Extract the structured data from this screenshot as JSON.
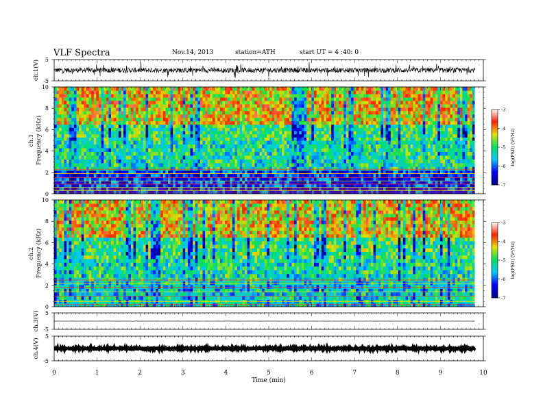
{
  "header": {
    "title": "VLF  Spectra",
    "date": "Nov.14, 2013",
    "station": "station=ATH",
    "start": "start  UT  =   4  :40: 0"
  },
  "chart_data": {
    "type": "spectrogram",
    "xlabel": "Time  (min)",
    "xlim": [
      0,
      10
    ],
    "xticks": [
      "0",
      "1",
      "2",
      "3",
      "4",
      "5",
      "6",
      "7",
      "8",
      "9",
      "10"
    ],
    "record_end_min": 9.8,
    "panels": [
      {
        "id": "ch1_waveform",
        "type": "line",
        "ylabel": "ch.1(V)",
        "ylim": [
          -5,
          5
        ],
        "yticks": [
          "5",
          "-5"
        ],
        "signal": {
          "baseline_V": 0.0,
          "noise_amplitude_V": 1.2,
          "burst_amplitude_V": 3.0
        }
      },
      {
        "id": "ch1_spectrogram",
        "type": "heatmap",
        "ylabel": "ch.1",
        "ylabel2": "Frequency  (kHz)",
        "ylim": [
          0,
          10
        ],
        "yticks": [
          "0",
          "2",
          "4",
          "6",
          "8",
          "10"
        ],
        "colorbar": {
          "label": "log(PSD) (V²/Hz)",
          "range": [
            -7,
            -3
          ],
          "ticks": [
            "-3",
            "-4",
            "-5",
            "-6",
            "-7"
          ],
          "colors": [
            "#00008b",
            "#0000ff",
            "#00c8ff",
            "#00e060",
            "#e0e000",
            "#ff2000",
            "#ffffff"
          ]
        },
        "bands_khz": [
          {
            "from": 0.0,
            "to": 2.2,
            "description_level": -6.2
          },
          {
            "from": 2.2,
            "to": 5.0,
            "description_level": -5.2
          },
          {
            "from": 5.0,
            "to": 6.5,
            "description_level": -5.0
          },
          {
            "from": 6.5,
            "to": 10.0,
            "description_level": -4.2
          }
        ],
        "horizontal_lines_khz": [
          0.15,
          0.3,
          0.45,
          0.6,
          0.9,
          1.2,
          1.5,
          1.9,
          2.3
        ]
      },
      {
        "id": "ch2_spectrogram",
        "type": "heatmap",
        "ylabel": "ch.2",
        "ylabel2": "Frequency  (kHz)",
        "ylim": [
          0,
          10
        ],
        "yticks": [
          "0",
          "2",
          "4",
          "6",
          "8",
          "10"
        ],
        "colorbar": {
          "label": "log(PSD) (V²/Hz)",
          "range": [
            -7,
            -3
          ],
          "ticks": [
            "-3",
            "-4",
            "-5",
            "-6",
            "-7"
          ],
          "colors": [
            "#00008b",
            "#0000ff",
            "#00c8ff",
            "#00e060",
            "#e0e000",
            "#ff2000",
            "#ffffff"
          ]
        },
        "bands_khz": [
          {
            "from": 0.0,
            "to": 2.4,
            "description_level": -5.4
          },
          {
            "from": 2.4,
            "to": 4.5,
            "description_level": -5.2
          },
          {
            "from": 4.5,
            "to": 6.5,
            "description_level": -5.0
          },
          {
            "from": 6.5,
            "to": 10.0,
            "description_level": -4.2
          }
        ],
        "horizontal_lines_khz": [
          0.2,
          0.5,
          1.0,
          1.4,
          1.8,
          2.2,
          2.5
        ]
      },
      {
        "id": "ch3_waveform",
        "type": "line",
        "ylabel": "ch.3(V)",
        "ylim": [
          -5,
          5
        ],
        "yticks": [
          "5",
          "-5"
        ],
        "signal": {
          "baseline_V": 0.0,
          "noise_amplitude_V": 0.05,
          "burst_amplitude_V": 0.1
        }
      },
      {
        "id": "ch4_waveform",
        "type": "line",
        "ylabel": "ch.4(V)",
        "ylim": [
          -5,
          5
        ],
        "yticks": [
          "5",
          "-5"
        ],
        "signal": {
          "baseline_V": 0.0,
          "noise_amplitude_V": 0.3,
          "burst_amplitude_V": 0.3
        }
      }
    ]
  }
}
